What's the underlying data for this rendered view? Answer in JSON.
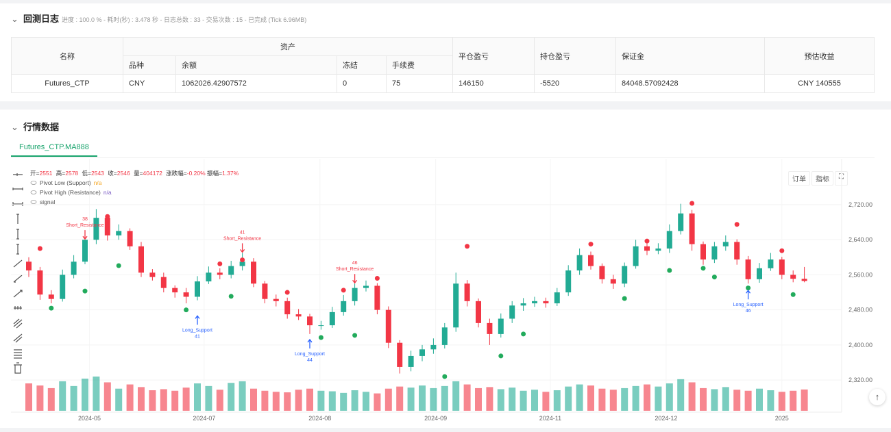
{
  "header": {
    "title": "回测日志",
    "status": "进度 : 100.0 % - 耗时(秒) : 3.478 秒 - 日志总数 : 33 - 交易次数 : 15 - 已完成 (Tick 6.96MB)"
  },
  "table": {
    "group_header": "资产",
    "columns": [
      "名称",
      "品种",
      "余额",
      "冻结",
      "手续费",
      "平仓盈亏",
      "持仓盈亏",
      "保证金",
      "预估收益"
    ],
    "rows": [
      [
        "Futures_CTP",
        "CNY",
        "1062026.42907572",
        "0",
        "75",
        "146150",
        "-5520",
        "84048.57092428",
        "CNY 140555"
      ]
    ]
  },
  "market": {
    "title": "行情数据",
    "tab": "Futures_CTP.MA888",
    "buttons": [
      "订单",
      "指标"
    ]
  },
  "chart_data": {
    "type": "candlestick",
    "ohlc_labels": [
      "开=",
      "高=",
      "低=",
      "收=",
      "量="
    ],
    "legend_stats": [
      {
        "label": "涨跌幅=",
        "value": "-0.20%"
      },
      {
        "label": "振幅=",
        "value": "1.37%"
      }
    ],
    "open": [
      2590,
      2570,
      2515,
      2505,
      2560,
      2590,
      2640,
      2690,
      2650,
      2660,
      2625,
      2565,
      2555,
      2530,
      2520,
      2510,
      2545,
      2565,
      2560,
      2580,
      2590,
      2540,
      2505,
      2500,
      2470,
      2465,
      2445,
      2445,
      2475,
      2500,
      2530,
      2535,
      2480,
      2405,
      2350,
      2375,
      2390,
      2400,
      2440,
      2540,
      2500,
      2450,
      2425,
      2460,
      2490,
      2495,
      2500,
      2495,
      2520,
      2570,
      2605,
      2580,
      2550,
      2540,
      2580,
      2625,
      2615,
      2620,
      2660,
      2700,
      2630,
      2595,
      2625,
      2635,
      2595,
      2550,
      2575,
      2595,
      2560,
      2551
    ],
    "high": [
      2600,
      2578,
      2525,
      2572,
      2605,
      2652,
      2710,
      2698,
      2675,
      2666,
      2635,
      2573,
      2565,
      2536,
      2530,
      2557,
      2579,
      2575,
      2592,
      2610,
      2598,
      2546,
      2515,
      2508,
      2482,
      2471,
      2455,
      2487,
      2514,
      2540,
      2547,
      2541,
      2488,
      2411,
      2387,
      2400,
      2415,
      2450,
      2565,
      2548,
      2506,
      2460,
      2472,
      2500,
      2507,
      2510,
      2508,
      2530,
      2582,
      2620,
      2613,
      2586,
      2560,
      2588,
      2640,
      2633,
      2632,
      2675,
      2722,
      2708,
      2636,
      2635,
      2650,
      2641,
      2603,
      2587,
      2610,
      2601,
      2570,
      2578
    ],
    "low": [
      2555,
      2503,
      2495,
      2499,
      2552,
      2584,
      2630,
      2638,
      2640,
      2617,
      2555,
      2547,
      2520,
      2508,
      2495,
      2502,
      2539,
      2550,
      2552,
      2570,
      2532,
      2495,
      2488,
      2460,
      2457,
      2425,
      2435,
      2439,
      2467,
      2490,
      2522,
      2470,
      2393,
      2335,
      2340,
      2363,
      2380,
      2392,
      2430,
      2488,
      2440,
      2400,
      2417,
      2450,
      2478,
      2487,
      2485,
      2489,
      2512,
      2560,
      2572,
      2540,
      2528,
      2532,
      2574,
      2605,
      2607,
      2610,
      2652,
      2615,
      2583,
      2587,
      2615,
      2583,
      2540,
      2542,
      2569,
      2550,
      2543,
      2543
    ],
    "close": [
      2570,
      2515,
      2505,
      2560,
      2590,
      2640,
      2690,
      2650,
      2660,
      2625,
      2565,
      2555,
      2530,
      2520,
      2510,
      2545,
      2565,
      2560,
      2580,
      2590,
      2540,
      2505,
      2500,
      2470,
      2465,
      2445,
      2445,
      2475,
      2500,
      2530,
      2535,
      2480,
      2405,
      2350,
      2375,
      2390,
      2400,
      2440,
      2540,
      2500,
      2450,
      2425,
      2460,
      2490,
      2495,
      2500,
      2495,
      2520,
      2570,
      2605,
      2580,
      2550,
      2540,
      2580,
      2625,
      2615,
      2620,
      2660,
      2700,
      2630,
      2595,
      2625,
      2635,
      2595,
      2550,
      2575,
      2595,
      2560,
      2551,
      2546
    ],
    "volume": [
      520000,
      480000,
      430000,
      560000,
      470000,
      610000,
      650000,
      540000,
      420000,
      500000,
      450000,
      390000,
      410000,
      380000,
      440000,
      520000,
      470000,
      400000,
      530000,
      560000,
      420000,
      380000,
      360000,
      350000,
      400000,
      420000,
      380000,
      370000,
      340000,
      390000,
      360000,
      330000,
      420000,
      460000,
      440000,
      480000,
      430000,
      470000,
      560000,
      500000,
      430000,
      450000,
      410000,
      440000,
      380000,
      400000,
      360000,
      390000,
      460000,
      500000,
      480000,
      420000,
      400000,
      430000,
      470000,
      500000,
      460000,
      520000,
      600000,
      540000,
      430000,
      410000,
      450000,
      400000,
      380000,
      420000,
      390000,
      360000,
      380000,
      404172
    ],
    "up_color": "#22ab94",
    "down_color": "#f23645",
    "series": [
      {
        "name": "Pivot Low (Support)",
        "value_label": "n/a",
        "color": "#22ab5c",
        "values": [
          null,
          null,
          2484,
          null,
          null,
          2523,
          null,
          null,
          2581,
          null,
          null,
          null,
          null,
          null,
          2480,
          null,
          null,
          null,
          2511,
          null,
          null,
          null,
          null,
          null,
          null,
          null,
          2417,
          null,
          null,
          2422,
          null,
          null,
          null,
          null,
          null,
          null,
          null,
          2328,
          null,
          null,
          null,
          null,
          2375,
          null,
          2425,
          null,
          null,
          null,
          null,
          null,
          null,
          null,
          null,
          2506,
          null,
          null,
          null,
          2570,
          null,
          null,
          2575,
          2555,
          null,
          null,
          2530,
          null,
          null,
          null,
          2515,
          null
        ]
      },
      {
        "name": "Pivot High (Resistance)",
        "value_label": "n/a",
        "color": "#f23645",
        "values": [
          null,
          2620,
          null,
          null,
          null,
          null,
          null,
          2693,
          null,
          null,
          null,
          null,
          null,
          null,
          null,
          null,
          null,
          2585,
          null,
          2594,
          null,
          null,
          null,
          2520,
          null,
          null,
          null,
          null,
          2525,
          null,
          null,
          2552,
          null,
          null,
          null,
          null,
          null,
          null,
          null,
          2625,
          null,
          null,
          null,
          null,
          null,
          null,
          null,
          null,
          null,
          null,
          2630,
          null,
          null,
          null,
          null,
          2637,
          null,
          null,
          null,
          2723,
          null,
          null,
          null,
          2675,
          null,
          null,
          null,
          2615,
          null,
          null
        ]
      },
      {
        "name": "signal"
      }
    ],
    "signals": [
      {
        "kind": "short",
        "label": "Short_Resistance",
        "text": "38",
        "index": 5,
        "price": 2640
      },
      {
        "kind": "long",
        "label": "Long_Support",
        "text": "41",
        "index": 15,
        "price": 2468
      },
      {
        "kind": "short",
        "label": "Short_Resistance",
        "text": "41",
        "index": 19,
        "price": 2610
      },
      {
        "kind": "long",
        "label": "Long_Support",
        "text": "44",
        "index": 25,
        "price": 2414
      },
      {
        "kind": "short",
        "label": "Short_Resistance",
        "text": "46",
        "index": 29,
        "price": 2540
      },
      {
        "kind": "long",
        "label": "Long_Support",
        "text": "46",
        "index": 64,
        "price": 2526
      }
    ],
    "ylim": [
      2250,
      2812
    ],
    "yticks": [
      {
        "value": 2320,
        "label": "2,320.00"
      },
      {
        "value": 2400,
        "label": "2,400.00"
      },
      {
        "value": 2480,
        "label": "2,480.00"
      },
      {
        "value": 2560,
        "label": "2,560.00"
      },
      {
        "value": 2640,
        "label": "2,640.00"
      },
      {
        "value": 2720,
        "label": "2,720.00"
      }
    ],
    "xticks": [
      {
        "value": 5.4,
        "label": "2024-05"
      },
      {
        "value": 15.6,
        "label": "2024-07"
      },
      {
        "value": 25.9,
        "label": "2024-08"
      },
      {
        "value": 36.2,
        "label": "2024-09"
      },
      {
        "value": 46.4,
        "label": "2024-11"
      },
      {
        "value": 56.7,
        "label": "2024-12"
      },
      {
        "value": 67,
        "label": "2025"
      }
    ],
    "grid": true
  }
}
